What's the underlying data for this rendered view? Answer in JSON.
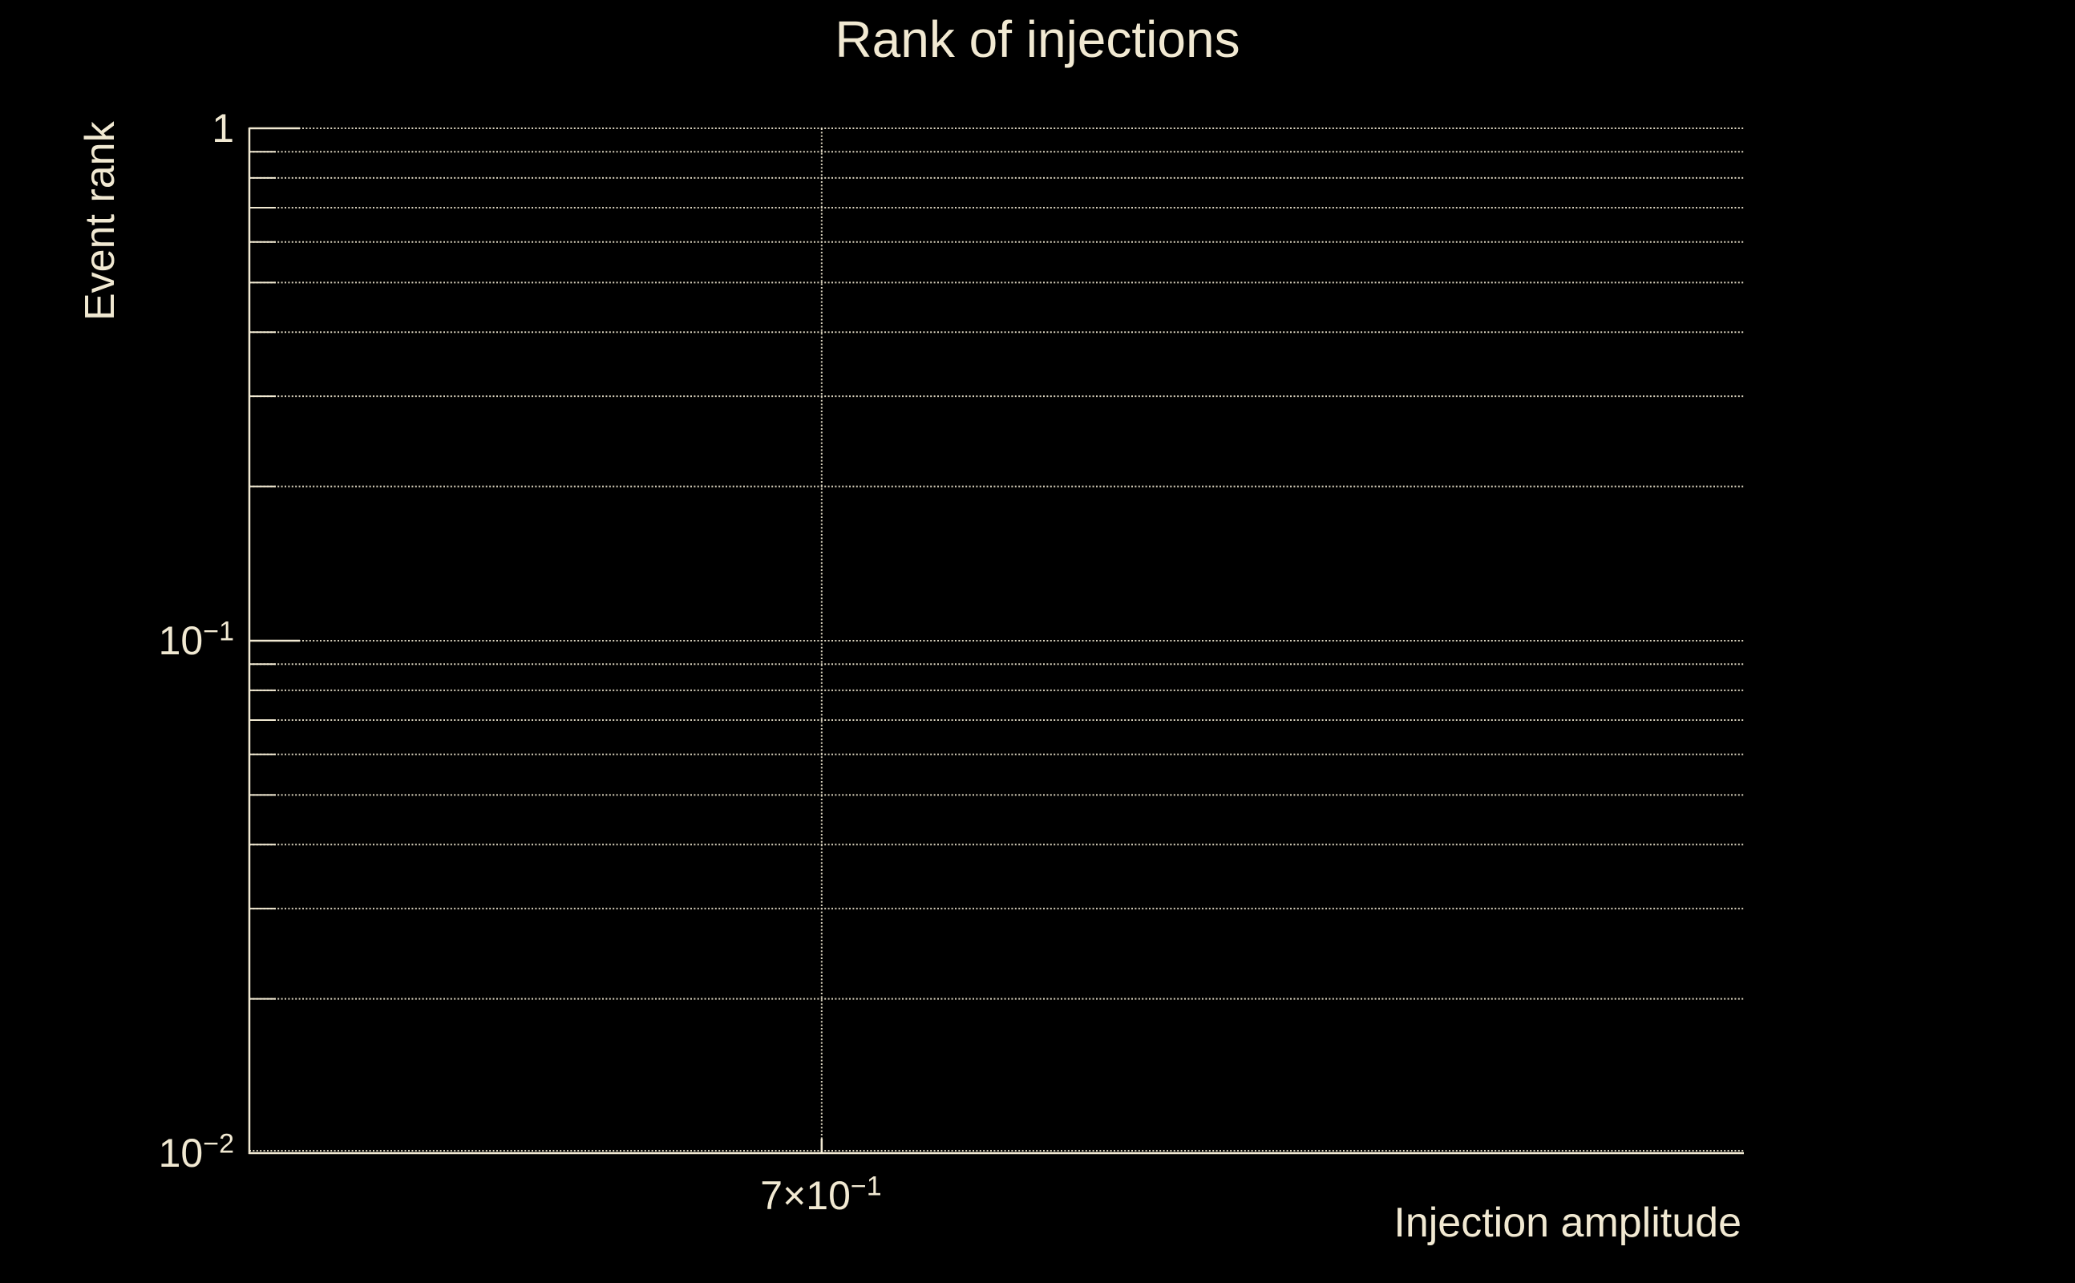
{
  "figure": {
    "title": "Rank of injections"
  },
  "colors": {
    "background": "#000000",
    "foreground": "#f1e9d2"
  },
  "y_axis": {
    "label": "Event rank",
    "ticks": [
      {
        "display": "1",
        "base": "1",
        "exp": "",
        "value": 1
      },
      {
        "display": "10⁻¹",
        "base": "10",
        "exp": "−1",
        "value": 0.1
      },
      {
        "display": "10⁻²",
        "base": "10",
        "exp": "−2",
        "value": 0.01
      }
    ]
  },
  "x_axis": {
    "label": "Injection amplitude",
    "ticks": [
      {
        "display": "7×10⁻¹",
        "base": "7×10",
        "exp": "−1",
        "value": 0.7
      }
    ]
  },
  "chart_data": {
    "type": "line",
    "title": "Rank of injections",
    "xlabel": "Injection amplitude",
    "ylabel": "Event rank",
    "xscale": "log",
    "yscale": "log",
    "xlim": [
      0.561,
      1.0
    ],
    "ylim": [
      0.01,
      1.0
    ],
    "x_major_ticks": [
      0.7
    ],
    "x_tick_labels": [
      "7×10⁻¹"
    ],
    "y_major_ticks": [
      1,
      0.1,
      0.01
    ],
    "y_tick_labels": [
      "1",
      "10⁻¹",
      "10⁻²"
    ],
    "y_minor_ticks": [
      0.9,
      0.8,
      0.7,
      0.6,
      0.5,
      0.4,
      0.3,
      0.2,
      0.09,
      0.08,
      0.07,
      0.06,
      0.05,
      0.04,
      0.03,
      0.02
    ],
    "grid": {
      "style": "dotted",
      "horizontal": "all log ticks",
      "vertical": "x major ticks"
    },
    "legend": null,
    "series": []
  }
}
